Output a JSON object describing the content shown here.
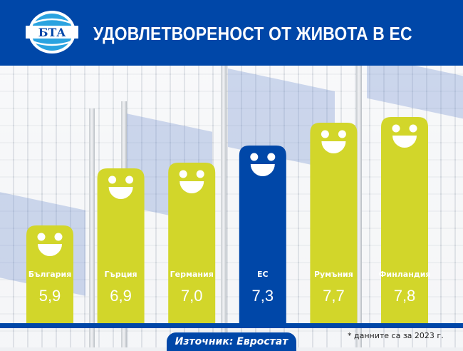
{
  "header": {
    "title": "УДОВЛЕТВОРЕНОСТ ОТ ЖИВОТА В ЕС",
    "logo_text": "БТА"
  },
  "footer": {
    "source": "Източник: Евростат",
    "note": "* данните са за 2023 г."
  },
  "colors": {
    "brand_blue": "#0047a8",
    "bar": "#d2d62a",
    "highlight": "#0047a8"
  },
  "chart_data": {
    "type": "bar",
    "title": "УДОВЛЕТВОРЕНОСТ ОТ ЖИВОТА В ЕС",
    "categories": [
      "България",
      "Гърция",
      "Германия",
      "ЕС",
      "Румъния",
      "Финландия"
    ],
    "values": [
      5.9,
      6.9,
      7.0,
      7.3,
      7.7,
      7.8
    ],
    "value_labels": [
      "5,9",
      "6,9",
      "7,0",
      "7,3",
      "7,7",
      "7,8"
    ],
    "highlighted": [
      "ЕС"
    ],
    "bar_icon": "smiley-face-icon",
    "grid": false
  }
}
